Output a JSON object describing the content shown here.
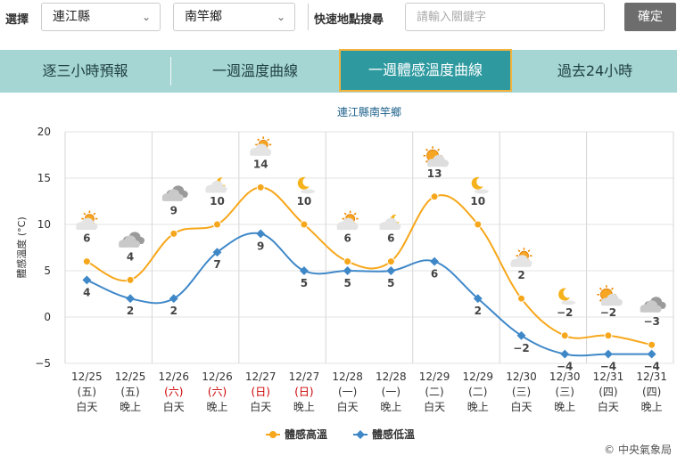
{
  "search": {
    "select_label": "選擇",
    "county": "連江縣",
    "township": "南竿鄉",
    "quick_label": "快速地點搜尋",
    "placeholder": "請輸入關鍵字",
    "confirm": "確定"
  },
  "tabs": [
    {
      "label": "逐三小時預報",
      "active": false
    },
    {
      "label": "一週溫度曲線",
      "active": false
    },
    {
      "label": "一週體感溫度曲線",
      "active": true
    },
    {
      "label": "過去24小時",
      "active": false
    }
  ],
  "colors": {
    "high": "#f7a71b",
    "low": "#3f88c8",
    "weekend": "#cc0000",
    "tab_bg": "#a5d6d4",
    "tab_active": "#2e9aa0",
    "tab_active_border": "#f3b33d"
  },
  "chart_data": {
    "type": "line",
    "title": "連江縣南竿鄉",
    "ylabel": "體感溫度 (°C)",
    "ylim": [
      -5,
      20
    ],
    "yticks": [
      -5,
      0,
      5,
      10,
      15,
      20
    ],
    "grid": true,
    "legend_position": "bottom",
    "categories": [
      {
        "date": "12/25",
        "dow": "(五)",
        "period": "白天",
        "weekend": false,
        "icon": "partly-cloudy-sun-icon"
      },
      {
        "date": "12/25",
        "dow": "(五)",
        "period": "晚上",
        "weekend": false,
        "icon": "cloudy-icon"
      },
      {
        "date": "12/26",
        "dow": "(六)",
        "period": "白天",
        "weekend": true,
        "icon": "cloudy-icon"
      },
      {
        "date": "12/26",
        "dow": "(六)",
        "period": "晚上",
        "weekend": true,
        "icon": "partly-cloudy-moon-icon"
      },
      {
        "date": "12/27",
        "dow": "(日)",
        "period": "白天",
        "weekend": true,
        "icon": "partly-cloudy-sun-icon"
      },
      {
        "date": "12/27",
        "dow": "(日)",
        "period": "晚上",
        "weekend": true,
        "icon": "moon-icon"
      },
      {
        "date": "12/28",
        "dow": "(一)",
        "period": "白天",
        "weekend": false,
        "icon": "partly-cloudy-sun-icon"
      },
      {
        "date": "12/28",
        "dow": "(一)",
        "period": "晚上",
        "weekend": false,
        "icon": "partly-cloudy-moon-icon"
      },
      {
        "date": "12/29",
        "dow": "(二)",
        "period": "白天",
        "weekend": false,
        "icon": "sunny-icon"
      },
      {
        "date": "12/29",
        "dow": "(二)",
        "period": "晚上",
        "weekend": false,
        "icon": "moon-icon"
      },
      {
        "date": "12/30",
        "dow": "(三)",
        "period": "白天",
        "weekend": false,
        "icon": "partly-cloudy-sun-icon"
      },
      {
        "date": "12/30",
        "dow": "(三)",
        "period": "晚上",
        "weekend": false,
        "icon": "moon-icon"
      },
      {
        "date": "12/31",
        "dow": "(四)",
        "period": "白天",
        "weekend": false,
        "icon": "sunny-icon"
      },
      {
        "date": "12/31",
        "dow": "(四)",
        "period": "晚上",
        "weekend": false,
        "icon": "cloudy-icon"
      }
    ],
    "series": [
      {
        "name": "體感高溫",
        "values": [
          6,
          4,
          9,
          10,
          14,
          10,
          6,
          6,
          13,
          10,
          2,
          -2,
          -2,
          -3
        ]
      },
      {
        "name": "體感低溫",
        "values": [
          4,
          2,
          2,
          7,
          9,
          5,
          5,
          5,
          6,
          2,
          -2,
          -4,
          -4,
          -4
        ]
      }
    ]
  },
  "footer": {
    "copyright": "© 中央氣象局"
  }
}
